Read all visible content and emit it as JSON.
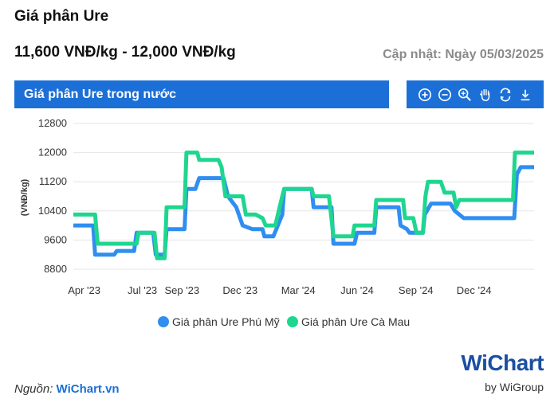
{
  "header": {
    "title": "Giá phân Ure",
    "price_range": "11,600 VNĐ/kg - 12,000 VNĐ/kg",
    "updated": "Cập nhật: Ngày 05/03/2025",
    "chart_banner": "Giá phân Ure trong nước"
  },
  "toolbar": {
    "tools": [
      "zoom-in-icon",
      "zoom-out-icon",
      "magnify-icon",
      "pan-hand-icon",
      "reset-icon",
      "download-icon"
    ]
  },
  "footer": {
    "source_label": "Nguồn: ",
    "source_link": "WiChart.vn",
    "brand_w": "W",
    "brand_rest": "iChart",
    "brand_sub": "by WiGroup"
  },
  "colors": {
    "accent": "#1c6fd6",
    "series_phu_my": "#2f8ef0",
    "series_ca_mau": "#1fd68f",
    "grid": "#e6e6e6"
  },
  "chart_data": {
    "type": "line",
    "ylabel": "(VNĐ/kg)",
    "ylim": [
      8800,
      12800
    ],
    "yticks": [
      8800,
      9600,
      10400,
      11200,
      12000,
      12800
    ],
    "xlim": [
      "2023-03-15",
      "2025-03-05"
    ],
    "xticks": [
      {
        "label": "Apr '23",
        "date": "2023-04-01"
      },
      {
        "label": "Jul '23",
        "date": "2023-07-01"
      },
      {
        "label": "Sep '23",
        "date": "2023-09-01"
      },
      {
        "label": "Dec '23",
        "date": "2023-12-01"
      },
      {
        "label": "Mar '24",
        "date": "2024-03-01"
      },
      {
        "label": "Jun '24",
        "date": "2024-06-01"
      },
      {
        "label": "Sep '24",
        "date": "2024-09-01"
      },
      {
        "label": "Dec '24",
        "date": "2024-12-01"
      }
    ],
    "grid": true,
    "legend": "bottom",
    "series": [
      {
        "name": "Giá phân Ure Phú Mỹ",
        "points": [
          [
            "2023-03-15",
            10000
          ],
          [
            "2023-04-15",
            10000
          ],
          [
            "2023-04-18",
            9200
          ],
          [
            "2023-05-18",
            9200
          ],
          [
            "2023-05-22",
            9300
          ],
          [
            "2023-06-18",
            9300
          ],
          [
            "2023-06-22",
            9800
          ],
          [
            "2023-07-18",
            9800
          ],
          [
            "2023-07-22",
            9200
          ],
          [
            "2023-08-05",
            9200
          ],
          [
            "2023-08-08",
            9900
          ],
          [
            "2023-09-05",
            9900
          ],
          [
            "2023-09-08",
            11000
          ],
          [
            "2023-09-22",
            11000
          ],
          [
            "2023-09-28",
            11300
          ],
          [
            "2023-11-05",
            11300
          ],
          [
            "2023-11-12",
            10800
          ],
          [
            "2023-11-25",
            10500
          ],
          [
            "2023-12-05",
            10000
          ],
          [
            "2023-12-20",
            9900
          ],
          [
            "2024-01-05",
            9900
          ],
          [
            "2024-01-08",
            9700
          ],
          [
            "2024-01-22",
            9700
          ],
          [
            "2024-02-05",
            10300
          ],
          [
            "2024-02-08",
            11000
          ],
          [
            "2024-03-22",
            11000
          ],
          [
            "2024-03-25",
            10500
          ],
          [
            "2024-04-22",
            10500
          ],
          [
            "2024-04-25",
            9500
          ],
          [
            "2024-05-28",
            9500
          ],
          [
            "2024-06-01",
            9800
          ],
          [
            "2024-06-28",
            9800
          ],
          [
            "2024-07-01",
            10500
          ],
          [
            "2024-08-05",
            10500
          ],
          [
            "2024-08-08",
            10000
          ],
          [
            "2024-08-18",
            9900
          ],
          [
            "2024-08-22",
            9800
          ],
          [
            "2024-09-12",
            9800
          ],
          [
            "2024-09-15",
            10300
          ],
          [
            "2024-09-25",
            10600
          ],
          [
            "2024-10-25",
            10600
          ],
          [
            "2024-11-01",
            10400
          ],
          [
            "2024-11-15",
            10200
          ],
          [
            "2025-02-02",
            10200
          ],
          [
            "2025-02-06",
            11400
          ],
          [
            "2025-02-12",
            11600
          ],
          [
            "2025-03-05",
            11600
          ]
        ]
      },
      {
        "name": "Giá phân Ure Cà Mau",
        "points": [
          [
            "2023-03-15",
            10300
          ],
          [
            "2023-04-18",
            10300
          ],
          [
            "2023-04-22",
            9500
          ],
          [
            "2023-05-30",
            9500
          ],
          [
            "2023-06-02",
            9500
          ],
          [
            "2023-06-22",
            9500
          ],
          [
            "2023-06-25",
            9800
          ],
          [
            "2023-07-20",
            9800
          ],
          [
            "2023-07-24",
            9100
          ],
          [
            "2023-08-05",
            9100
          ],
          [
            "2023-08-08",
            10500
          ],
          [
            "2023-09-05",
            10500
          ],
          [
            "2023-09-08",
            12000
          ],
          [
            "2023-09-25",
            12000
          ],
          [
            "2023-09-28",
            11800
          ],
          [
            "2023-10-28",
            11800
          ],
          [
            "2023-11-02",
            11600
          ],
          [
            "2023-11-08",
            10800
          ],
          [
            "2023-12-05",
            10800
          ],
          [
            "2023-12-10",
            10300
          ],
          [
            "2023-12-25",
            10300
          ],
          [
            "2024-01-05",
            10200
          ],
          [
            "2024-01-10",
            10000
          ],
          [
            "2024-01-25",
            10000
          ],
          [
            "2024-02-05",
            10800
          ],
          [
            "2024-02-08",
            11000
          ],
          [
            "2024-03-22",
            11000
          ],
          [
            "2024-03-25",
            10800
          ],
          [
            "2024-04-18",
            10800
          ],
          [
            "2024-04-25",
            9700
          ],
          [
            "2024-05-25",
            9700
          ],
          [
            "2024-05-28",
            10000
          ],
          [
            "2024-06-28",
            10000
          ],
          [
            "2024-07-01",
            10700
          ],
          [
            "2024-08-12",
            10700
          ],
          [
            "2024-08-15",
            10200
          ],
          [
            "2024-08-28",
            10200
          ],
          [
            "2024-09-02",
            9800
          ],
          [
            "2024-09-12",
            9800
          ],
          [
            "2024-09-16",
            10800
          ],
          [
            "2024-09-20",
            11200
          ],
          [
            "2024-10-10",
            11200
          ],
          [
            "2024-10-16",
            10900
          ],
          [
            "2024-10-30",
            10900
          ],
          [
            "2024-11-03",
            10500
          ],
          [
            "2024-11-08",
            10700
          ],
          [
            "2025-01-31",
            10700
          ],
          [
            "2025-02-03",
            12000
          ],
          [
            "2025-03-05",
            12000
          ]
        ]
      }
    ]
  }
}
